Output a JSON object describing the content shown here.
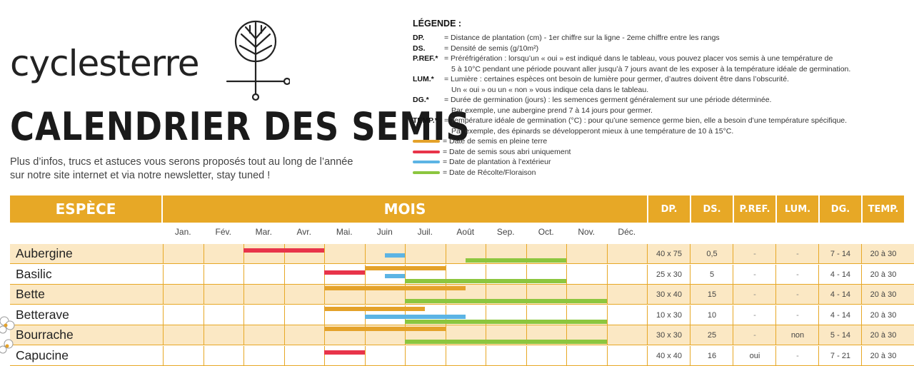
{
  "logo": {
    "text": "cyclesterre"
  },
  "title": "CALENDRIER DES SEMIS",
  "subtitle_lines": [
    "Plus d’infos, trucs et astuces vous serons proposés tout au long de l’année",
    "sur notre site internet et via notre newsletter, stay tuned !"
  ],
  "legend": {
    "title": "LÉGENDE :",
    "items": [
      {
        "key": "DP.",
        "lines": [
          "= Distance de plantation (cm) - 1er chiffre sur la ligne - 2eme chiffre entre les rangs"
        ]
      },
      {
        "key": "DS.",
        "lines": [
          "= Densité de semis (g/10m²)"
        ]
      },
      {
        "key": "P.REF.*",
        "lines": [
          "= Préréfrigération : lorsqu’un « oui » est indiqué dans le tableau, vous pouvez placer vos semis à une température de",
          "5 à 10°C pendant une période pouvant aller jusqu’à 7 jours avant de les exposer à la température idéale de germination."
        ]
      },
      {
        "key": "LUM.*",
        "lines": [
          "= Lumière : certaines espèces ont besoin de lumière pour germer, d’autres doivent  être dans l’obscurité.",
          "Un « oui » ou un « non » vous indique cela dans le tableau."
        ]
      },
      {
        "key": "DG.*",
        "lines": [
          "= Durée de germination (jours) : les semences germent généralement sur une période déterminée.",
          "Par exemple, une aubergine prend 7 à 14 jours pour germer."
        ]
      },
      {
        "key": "TEMP.*",
        "lines": [
          "= Température idéale de germination (°C) : pour qu’une semence germe bien, elle a besoin d’une température spécifique.",
          "Par exemple, des épinards se développeront mieux à une température de 10 à 15°C."
        ]
      }
    ],
    "bars": [
      {
        "color": "#e4a22a",
        "label": "= Date de semis en pleine terre"
      },
      {
        "color": "#e8344a",
        "label": "= Date de semis sous abri uniquement"
      },
      {
        "color": "#5cb4e4",
        "label": "= Date de plantation à l’extérieur"
      },
      {
        "color": "#8cc63f",
        "label": "= Date de Récolte/Floraison"
      }
    ]
  },
  "table": {
    "headers": {
      "species": "ESPÈCE",
      "months": "MOIS",
      "dp": "DP.",
      "ds": "DS.",
      "pref": "P.REF.",
      "lum": "LUM.",
      "dg": "DG.",
      "temp": "TEMP."
    },
    "month_labels": [
      "Jan.",
      "Fév.",
      "Mar.",
      "Avr.",
      "Mai.",
      "Juin",
      "Juil.",
      "Août",
      "Sep.",
      "Oct.",
      "Nov.",
      "Déc."
    ],
    "colors": {
      "pleine_terre": "#e4a22a",
      "abri": "#e8344a",
      "plantation": "#5cb4e4",
      "recolte": "#8cc63f"
    },
    "rows": [
      {
        "name": "Aubergine",
        "dp": "40 x 75",
        "ds": "0,5",
        "pref": "-",
        "lum": "-",
        "dg": "7 - 14",
        "temp": "20 à 30",
        "bars": [
          {
            "kind": "abri",
            "start_month": 2,
            "end_month": 4
          },
          {
            "kind": "plantation",
            "start_month": 5.5,
            "end_month": 6
          },
          {
            "kind": "recolte",
            "start_month": 7.5,
            "end_month": 10
          }
        ]
      },
      {
        "name": "Basilic",
        "dp": "25 x 30",
        "ds": "5",
        "pref": "-",
        "lum": "-",
        "dg": "4 - 14",
        "temp": "20 à 30",
        "bars": [
          {
            "kind": "pleine_terre",
            "start_month": 5,
            "end_month": 7
          },
          {
            "kind": "abri",
            "start_month": 4,
            "end_month": 5
          },
          {
            "kind": "plantation",
            "start_month": 5.5,
            "end_month": 6
          },
          {
            "kind": "recolte",
            "start_month": 6,
            "end_month": 10
          }
        ]
      },
      {
        "name": "Bette",
        "dp": "30 x 40",
        "ds": "15",
        "pref": "-",
        "lum": "-",
        "dg": "4 - 14",
        "temp": "20 à 30",
        "bars": [
          {
            "kind": "pleine_terre",
            "start_month": 4,
            "end_month": 7.5
          },
          {
            "kind": "recolte",
            "start_month": 6,
            "end_month": 11
          }
        ]
      },
      {
        "name": "Betterave",
        "dp": "10 x 30",
        "ds": "10",
        "pref": "-",
        "lum": "-",
        "dg": "4 - 14",
        "temp": "20 à 30",
        "bars": [
          {
            "kind": "pleine_terre",
            "start_month": 4,
            "end_month": 6.5
          },
          {
            "kind": "plantation",
            "start_month": 5,
            "end_month": 7.5
          },
          {
            "kind": "recolte",
            "start_month": 6,
            "end_month": 11
          }
        ]
      },
      {
        "name": "Bourrache",
        "dp": "30 x 30",
        "ds": "25",
        "pref": "-",
        "lum": "non",
        "dg": "5 - 14",
        "temp": "20 à 30",
        "bars": [
          {
            "kind": "pleine_terre",
            "start_month": 4,
            "end_month": 7
          },
          {
            "kind": "recolte",
            "start_month": 6,
            "end_month": 11
          }
        ]
      },
      {
        "name": "Capucine",
        "dp": "40 x 40",
        "ds": "16",
        "pref": "oui",
        "lum": "-",
        "dg": "7 - 21",
        "temp": "20 à 30",
        "bars": [
          {
            "kind": "abri",
            "start_month": 4,
            "end_month": 5
          }
        ]
      }
    ]
  }
}
